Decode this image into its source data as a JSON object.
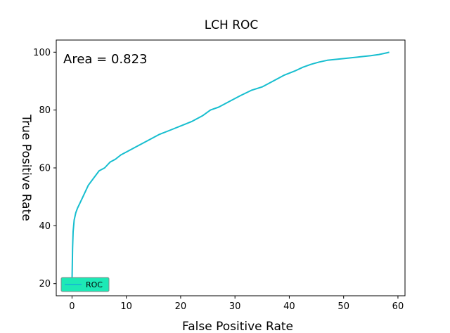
{
  "chart_data": {
    "type": "line",
    "title": "LCH ROC",
    "xlabel": "False Positive Rate",
    "ylabel": "True Positive Rate",
    "annotation": "Area = 0.823",
    "xlim": [
      -2.9,
      61.3
    ],
    "ylim": [
      15.8,
      104.2
    ],
    "xticks": [
      0,
      10,
      20,
      30,
      40,
      50,
      60
    ],
    "yticks": [
      20,
      40,
      60,
      80,
      100
    ],
    "grid": false,
    "legend": {
      "position": "lower-left",
      "background": "#1de9b6"
    },
    "series": [
      {
        "name": "ROC",
        "color": "#17becf",
        "x": [
          0.0,
          0.1,
          0.2,
          0.4,
          0.7,
          1.0,
          1.5,
          2.0,
          3.0,
          4.0,
          5.0,
          6.0,
          7.0,
          8.0,
          9.0,
          10.0,
          12.0,
          14.0,
          16.0,
          18.0,
          20.0,
          22.0,
          24.0,
          25.5,
          27.0,
          29.0,
          31.0,
          33.0,
          35.0,
          37.0,
          39.0,
          41.0,
          42.5,
          44.0,
          45.5,
          47.0,
          50.0,
          53.0,
          55.0,
          56.5,
          58.0,
          58.4
        ],
        "y": [
          20.0,
          32.0,
          38.0,
          42.0,
          44.5,
          46.0,
          48.0,
          50.0,
          54.0,
          56.5,
          59.0,
          60.0,
          62.0,
          63.0,
          64.5,
          65.5,
          67.5,
          69.5,
          71.5,
          73.0,
          74.5,
          76.0,
          78.0,
          80.0,
          81.0,
          83.0,
          85.0,
          86.8,
          88.0,
          90.0,
          92.0,
          93.5,
          94.8,
          95.8,
          96.6,
          97.2,
          97.8,
          98.4,
          98.8,
          99.2,
          99.8,
          100.0
        ]
      }
    ]
  }
}
